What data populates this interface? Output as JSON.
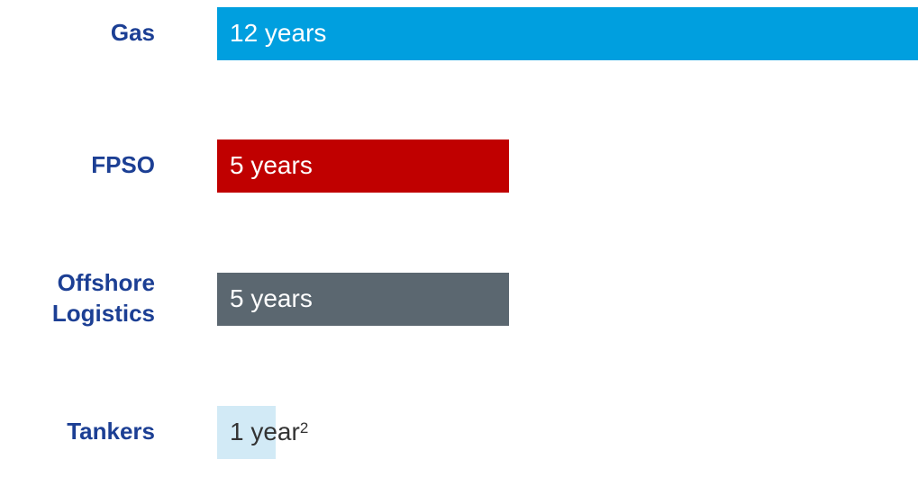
{
  "chart_data": {
    "type": "hbar",
    "categories": [
      "Gas",
      "FPSO",
      "Offshore Logistics",
      "Tankers"
    ],
    "values": [
      12,
      5,
      5,
      1
    ],
    "value_labels": [
      "12 years",
      "5 years",
      "5 years",
      "1 year"
    ],
    "value_label_superscripts": [
      null,
      null,
      null,
      "2"
    ],
    "colors": [
      "#009fdf",
      "#c00000",
      "#5b6770",
      "#d2eaf6"
    ],
    "label_colors": [
      "#ffffff",
      "#ffffff",
      "#ffffff",
      "#333333"
    ]
  }
}
